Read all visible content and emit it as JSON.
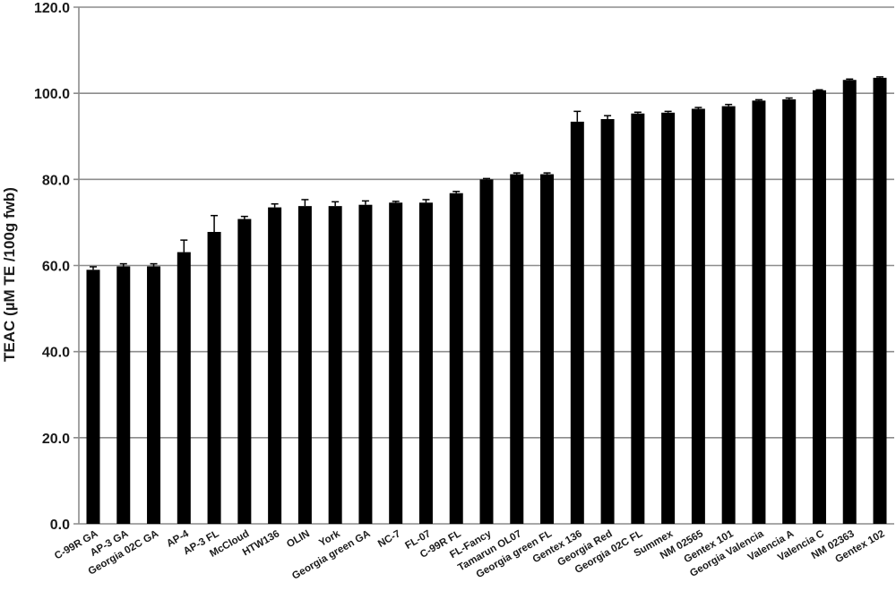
{
  "chart_data": {
    "type": "bar",
    "title": "",
    "xlabel": "",
    "ylabel": "TEAC (µM TE /100g  fwb)",
    "ylim": [
      0,
      120
    ],
    "yticks": [
      "0.0",
      "20.0",
      "40.0",
      "60.0",
      "80.0",
      "100.0",
      "120.0"
    ],
    "grid": true,
    "legend": "none",
    "bar_color": "#000000",
    "grid_color": "#8c8c8c",
    "categories": [
      "C-99R  GA",
      "AP-3  GA",
      "Georgia 02C GA",
      "AP-4",
      "AP-3 FL",
      "McCloud",
      "HTW136",
      "OLIN",
      "York",
      "Georgia green GA",
      "NC-7",
      "FL-07",
      "C-99R FL",
      "FL-Fancy",
      "Tamarun OL07",
      "Georgia green FL",
      "Gentex 136",
      "Georgia Red",
      "Georgia 02C FL",
      "Summex",
      "NM 02565",
      "Gentex 101",
      "Georgia Valencia",
      "Valencia A",
      "Valencia C",
      "NM 02363",
      "Gentex 102"
    ],
    "values": [
      59.0,
      59.8,
      59.8,
      63.1,
      67.8,
      70.8,
      73.5,
      73.8,
      73.8,
      74.1,
      74.6,
      74.6,
      76.8,
      80.0,
      81.2,
      81.2,
      93.4,
      94.0,
      95.3,
      95.5,
      96.4,
      97.0,
      98.3,
      98.6,
      100.7,
      103.1,
      103.6
    ],
    "errors": [
      0.7,
      0.6,
      0.6,
      2.8,
      3.8,
      0.6,
      0.8,
      1.5,
      1.0,
      0.9,
      0.3,
      0.7,
      0.4,
      0.2,
      0.3,
      0.3,
      2.4,
      0.8,
      0.3,
      0.3,
      0.3,
      0.4,
      0.2,
      0.3,
      0.1,
      0.2,
      0.2
    ]
  }
}
